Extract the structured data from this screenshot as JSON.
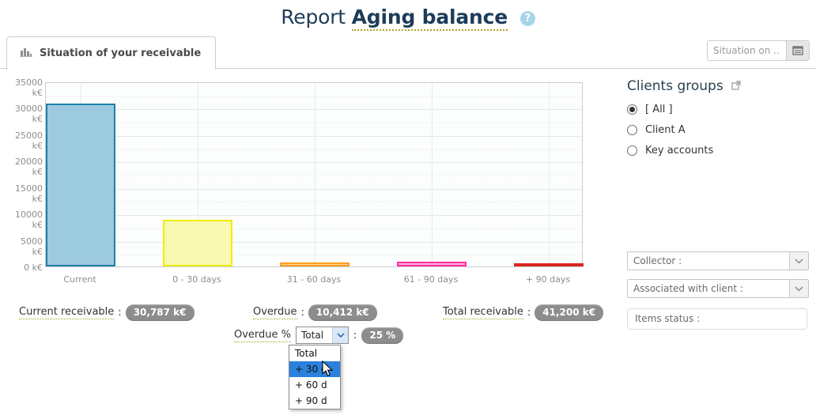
{
  "ui": {
    "colon": ":"
  },
  "header": {
    "title_prefix": "Report ",
    "title_emphasis": "Aging balance",
    "help_label": "?"
  },
  "tab": {
    "label": "Situation of your receivable"
  },
  "situation_filter": {
    "placeholder": "Situation on ..."
  },
  "chart_data": {
    "type": "bar",
    "title": "",
    "xlabel": "",
    "ylabel": "",
    "categories": [
      "Current",
      "0 - 30 days",
      "31 - 60 days",
      "61 - 90 days",
      "+ 90 days"
    ],
    "values": [
      30787,
      8800,
      680,
      830,
      102
    ],
    "unit": "k€",
    "ylim": [
      0,
      35000
    ],
    "y_tick_step": 5000,
    "y_tick_suffix": " k€",
    "grid": true,
    "legend": "none",
    "bar_styles": [
      {
        "fill": "#9ccadf",
        "border": "#2180ab"
      },
      {
        "fill": "#f8f8b0",
        "border": "#f0ed0a"
      },
      {
        "fill": "#fdd9a4",
        "border": "#ff9c20"
      },
      {
        "fill": "#f9b3d8",
        "border": "#ff2f9e"
      },
      {
        "fill": "#efaaa2",
        "border": "#d7271d"
      }
    ]
  },
  "summary": [
    {
      "label": "Current receivable",
      "value": "30,787 k€"
    },
    {
      "label": "Overdue",
      "value": "10,412 k€"
    },
    {
      "label": "Total receivable",
      "value": "41,200 k€"
    }
  ],
  "overdue_percent": {
    "label": "Overdue %",
    "selected": "Total",
    "badge": "25 %",
    "options": [
      "Total",
      "+ 30 d",
      "+ 60 d",
      "+ 90 d"
    ],
    "highlighted": "+ 30 d"
  },
  "clients_groups": {
    "title": "Clients groups",
    "options": [
      {
        "label": "[ All ]",
        "selected": true
      },
      {
        "label": "Client A",
        "selected": false
      },
      {
        "label": "Key accounts",
        "selected": false
      }
    ]
  },
  "filters": [
    {
      "label": "Collector :",
      "type": "select"
    },
    {
      "label": "Associated with client :",
      "type": "select"
    },
    {
      "label": "Items status :",
      "type": "input"
    }
  ],
  "colors": {
    "title": "#1d3c59",
    "dotted_underline": "#aaa61e",
    "badge_bg": "#8d8d8d",
    "highlight_blue": "#2a82dc",
    "help_icon_bg": "#a7d4e8"
  }
}
